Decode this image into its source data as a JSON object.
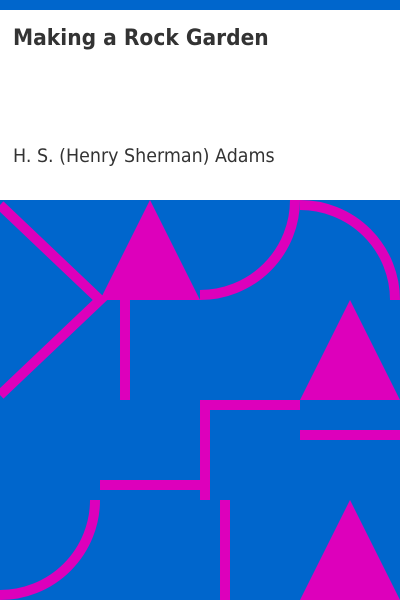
{
  "book": {
    "title": "Making a Rock Garden",
    "author": "H. S. (Henry Sherman) Adams"
  },
  "colors": {
    "accent_blue": "#0066cc",
    "pattern_magenta": "#dd00bb",
    "text": "#333333",
    "background": "#ffffff"
  },
  "artwork": {
    "icons": [
      "triangle-icon",
      "quarter-circle-arc-icon",
      "diagonal-stripe-icon",
      "l-bracket-icon"
    ]
  }
}
